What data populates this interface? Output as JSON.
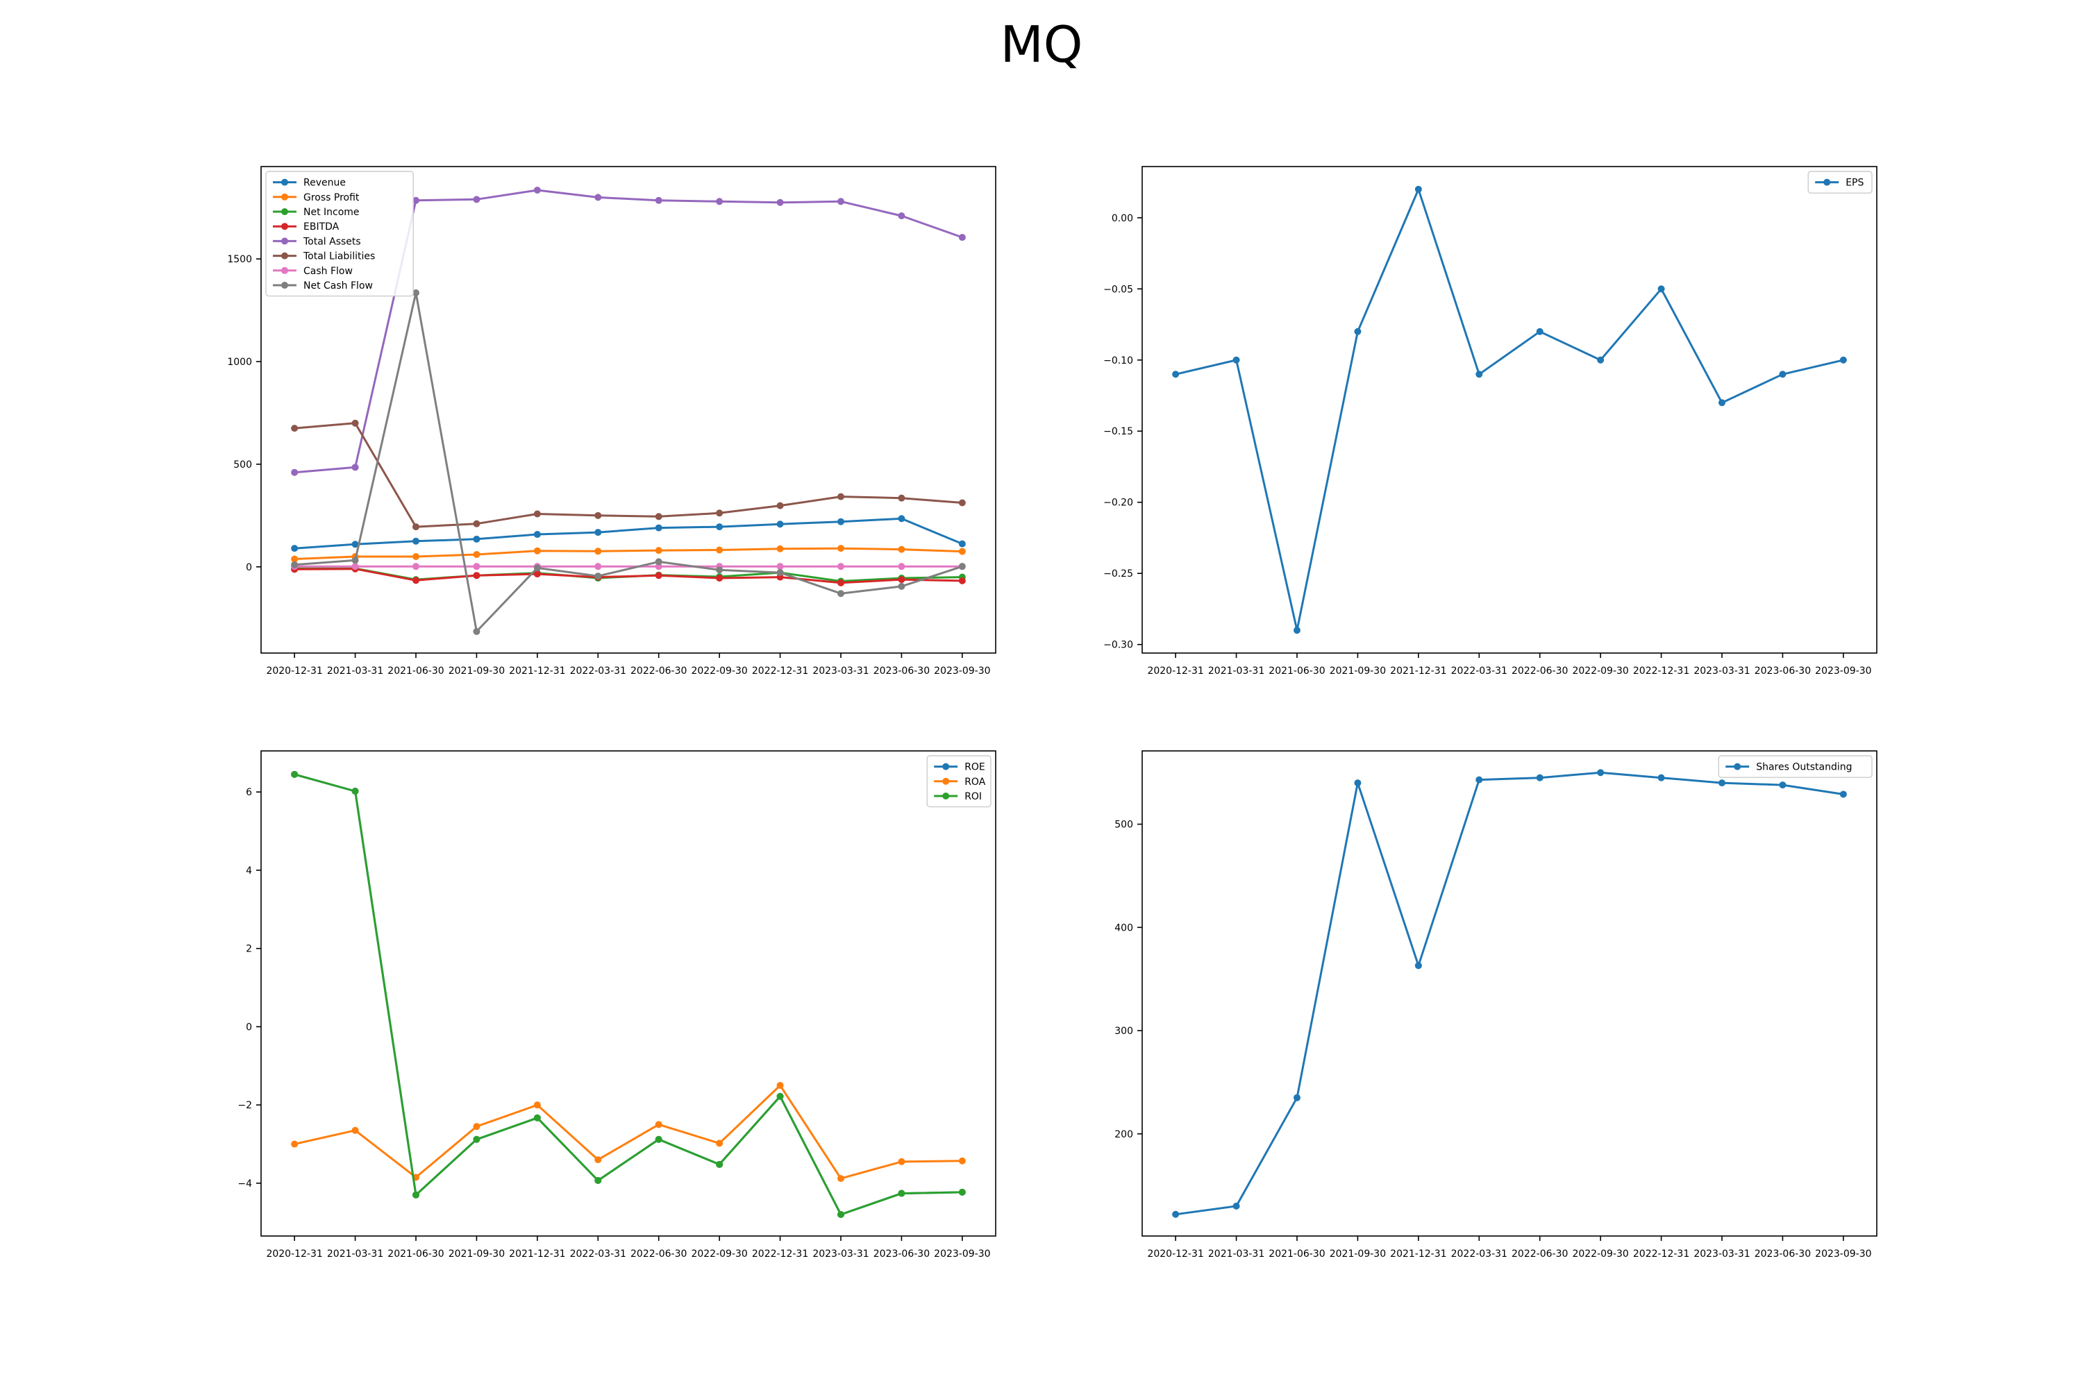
{
  "title": "MQ",
  "colors": {
    "c0": "#1f77b4",
    "c1": "#ff7f0e",
    "c2": "#2ca02c",
    "c3": "#d62728",
    "c4": "#9467bd",
    "c5": "#8c564b",
    "c6": "#e377c2",
    "c7": "#7f7f7f"
  },
  "chart_data": [
    {
      "type": "line",
      "id": "financials",
      "x": [
        "2020-12-31",
        "2021-03-31",
        "2021-06-30",
        "2021-09-30",
        "2021-12-31",
        "2022-03-31",
        "2022-06-30",
        "2022-09-30",
        "2022-12-31",
        "2023-03-31",
        "2023-06-30",
        "2023-09-30"
      ],
      "yticks": [
        0,
        500,
        1000,
        1500
      ],
      "ylim": [
        -420,
        1950
      ],
      "legend": "top-left",
      "grid": false,
      "series": [
        {
          "name": "Revenue",
          "color": "#1f77b4",
          "values": [
            90,
            110,
            125,
            135,
            158,
            168,
            190,
            195,
            208,
            220,
            235,
            112
          ]
        },
        {
          "name": "Gross Profit",
          "color": "#ff7f0e",
          "values": [
            38,
            50,
            50,
            60,
            78,
            76,
            80,
            82,
            88,
            90,
            85,
            75
          ]
        },
        {
          "name": "Net Income",
          "color": "#2ca02c",
          "values": [
            -8,
            -8,
            -62,
            -42,
            -30,
            -55,
            -40,
            -48,
            -28,
            -70,
            -55,
            -50
          ]
        },
        {
          "name": "EBITDA",
          "color": "#d62728",
          "values": [
            -12,
            -10,
            -66,
            -42,
            -35,
            -50,
            -42,
            -55,
            -50,
            -78,
            -62,
            -68
          ]
        },
        {
          "name": "Total Assets",
          "color": "#9467bd",
          "values": [
            460,
            485,
            1785,
            1790,
            1835,
            1800,
            1785,
            1780,
            1775,
            1780,
            1710,
            1605
          ]
        },
        {
          "name": "Total Liabilities",
          "color": "#8c564b",
          "values": [
            675,
            700,
            195,
            210,
            258,
            250,
            245,
            262,
            298,
            342,
            335,
            312
          ]
        },
        {
          "name": "Cash Flow",
          "color": "#e377c2",
          "values": [
            2,
            2,
            2,
            2,
            2,
            2,
            2,
            2,
            2,
            2,
            2,
            2
          ]
        },
        {
          "name": "Net Cash Flow",
          "color": "#7f7f7f",
          "values": [
            10,
            32,
            1335,
            -315,
            -5,
            -45,
            25,
            -15,
            -28,
            -130,
            -95,
            2
          ]
        }
      ]
    },
    {
      "type": "line",
      "id": "eps",
      "x": [
        "2020-12-31",
        "2021-03-31",
        "2021-06-30",
        "2021-09-30",
        "2021-12-31",
        "2022-03-31",
        "2022-06-30",
        "2022-09-30",
        "2022-12-31",
        "2023-03-31",
        "2023-06-30",
        "2023-09-30"
      ],
      "yticks": [
        -0.3,
        -0.25,
        -0.2,
        -0.15,
        -0.1,
        -0.05,
        0.0
      ],
      "ytick_labels": [
        "−0.30",
        "−0.25",
        "−0.20",
        "−0.15",
        "−0.10",
        "−0.05",
        "0.00"
      ],
      "ylim": [
        -0.306,
        0.036
      ],
      "legend": "top-right",
      "grid": false,
      "series": [
        {
          "name": "EPS",
          "color": "#1f77b4",
          "values": [
            -0.11,
            -0.1,
            -0.29,
            -0.08,
            0.02,
            -0.11,
            -0.08,
            -0.1,
            -0.05,
            -0.13,
            -0.11,
            -0.1
          ]
        }
      ]
    },
    {
      "type": "line",
      "id": "ratios",
      "x": [
        "2020-12-31",
        "2021-03-31",
        "2021-06-30",
        "2021-09-30",
        "2021-12-31",
        "2022-03-31",
        "2022-06-30",
        "2022-09-30",
        "2022-12-31",
        "2023-03-31",
        "2023-06-30",
        "2023-09-30"
      ],
      "yticks": [
        -4,
        -2,
        0,
        2,
        4,
        6
      ],
      "ytick_labels": [
        "−4",
        "−2",
        "0",
        "2",
        "4",
        "6"
      ],
      "ylim": [
        -5.35,
        7.05
      ],
      "legend": "top-right",
      "grid": false,
      "series": [
        {
          "name": "ROE",
          "color": "#1f77b4",
          "values": [
            6.45,
            6.02,
            -4.3,
            -2.88,
            -2.33,
            -3.93,
            -2.88,
            -3.52,
            -1.78,
            -4.8,
            -4.26,
            -4.23
          ]
        },
        {
          "name": "ROA",
          "color": "#ff7f0e",
          "values": [
            -3.0,
            -2.65,
            -3.85,
            -2.55,
            -2.0,
            -3.4,
            -2.5,
            -2.98,
            -1.5,
            -3.88,
            -3.45,
            -3.43
          ]
        },
        {
          "name": "ROI",
          "color": "#2ca02c",
          "values": [
            6.45,
            6.02,
            -4.3,
            -2.88,
            -2.33,
            -3.93,
            -2.88,
            -3.52,
            -1.78,
            -4.8,
            -4.26,
            -4.23
          ]
        }
      ]
    },
    {
      "type": "line",
      "id": "shares",
      "x": [
        "2020-12-31",
        "2021-03-31",
        "2021-06-30",
        "2021-09-30",
        "2021-12-31",
        "2022-03-31",
        "2022-06-30",
        "2022-09-30",
        "2022-12-31",
        "2023-03-31",
        "2023-06-30",
        "2023-09-30"
      ],
      "yticks": [
        200,
        300,
        400,
        500
      ],
      "ylim": [
        101,
        571
      ],
      "legend": "top-right",
      "grid": false,
      "series": [
        {
          "name": "Shares Outstanding",
          "color": "#1f77b4",
          "values": [
            122,
            130,
            235,
            540,
            363,
            543,
            545,
            550,
            545,
            540,
            538,
            529
          ]
        }
      ]
    }
  ]
}
